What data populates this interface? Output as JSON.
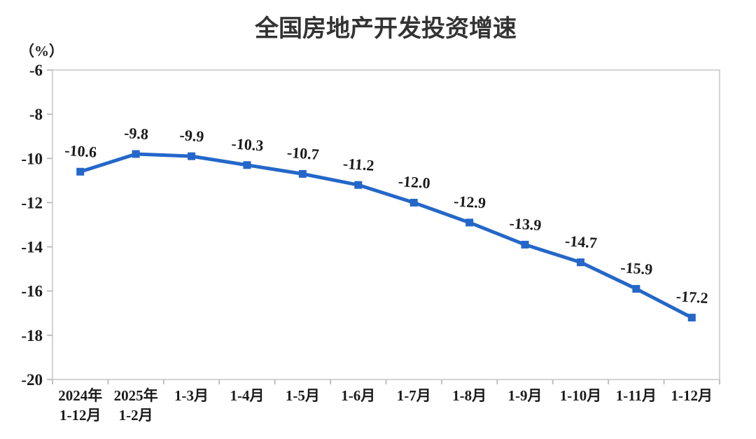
{
  "chart_data": {
    "type": "line",
    "title": "全国房地产开发投资增速",
    "unit_label": "（%）",
    "categories": [
      [
        "2024年",
        "1-12月"
      ],
      [
        "2025年",
        "1-2月"
      ],
      [
        "1-3月"
      ],
      [
        "1-4月"
      ],
      [
        "1-5月"
      ],
      [
        "1-6月"
      ],
      [
        "1-7月"
      ],
      [
        "1-8月"
      ],
      [
        "1-9月"
      ],
      [
        "1-10月"
      ],
      [
        "1-11月"
      ],
      [
        "1-12月"
      ]
    ],
    "values": [
      -10.6,
      -9.8,
      -9.9,
      -10.3,
      -10.7,
      -11.2,
      -12.0,
      -12.9,
      -13.9,
      -14.7,
      -15.9,
      -17.2
    ],
    "point_labels": [
      "-10.6",
      "-9.8",
      "-9.9",
      "-10.3",
      "-10.7",
      "-11.2",
      "-12.0",
      "-12.9",
      "-13.9",
      "-14.7",
      "-15.9",
      "-17.2"
    ],
    "yticks": [
      -6,
      -8,
      -10,
      -12,
      -14,
      -16,
      -18,
      -20
    ],
    "ylim": [
      -20,
      -6
    ],
    "grid": false,
    "legend": "none",
    "marker": "square",
    "colors": {
      "line": "#2467c9",
      "marker": "#2467c9",
      "label_text": "#1b1b1b",
      "title_text": "#333333",
      "plot_border": "#d4d4d4",
      "tick": "#bfbfbf",
      "background": "#ffffff"
    }
  }
}
